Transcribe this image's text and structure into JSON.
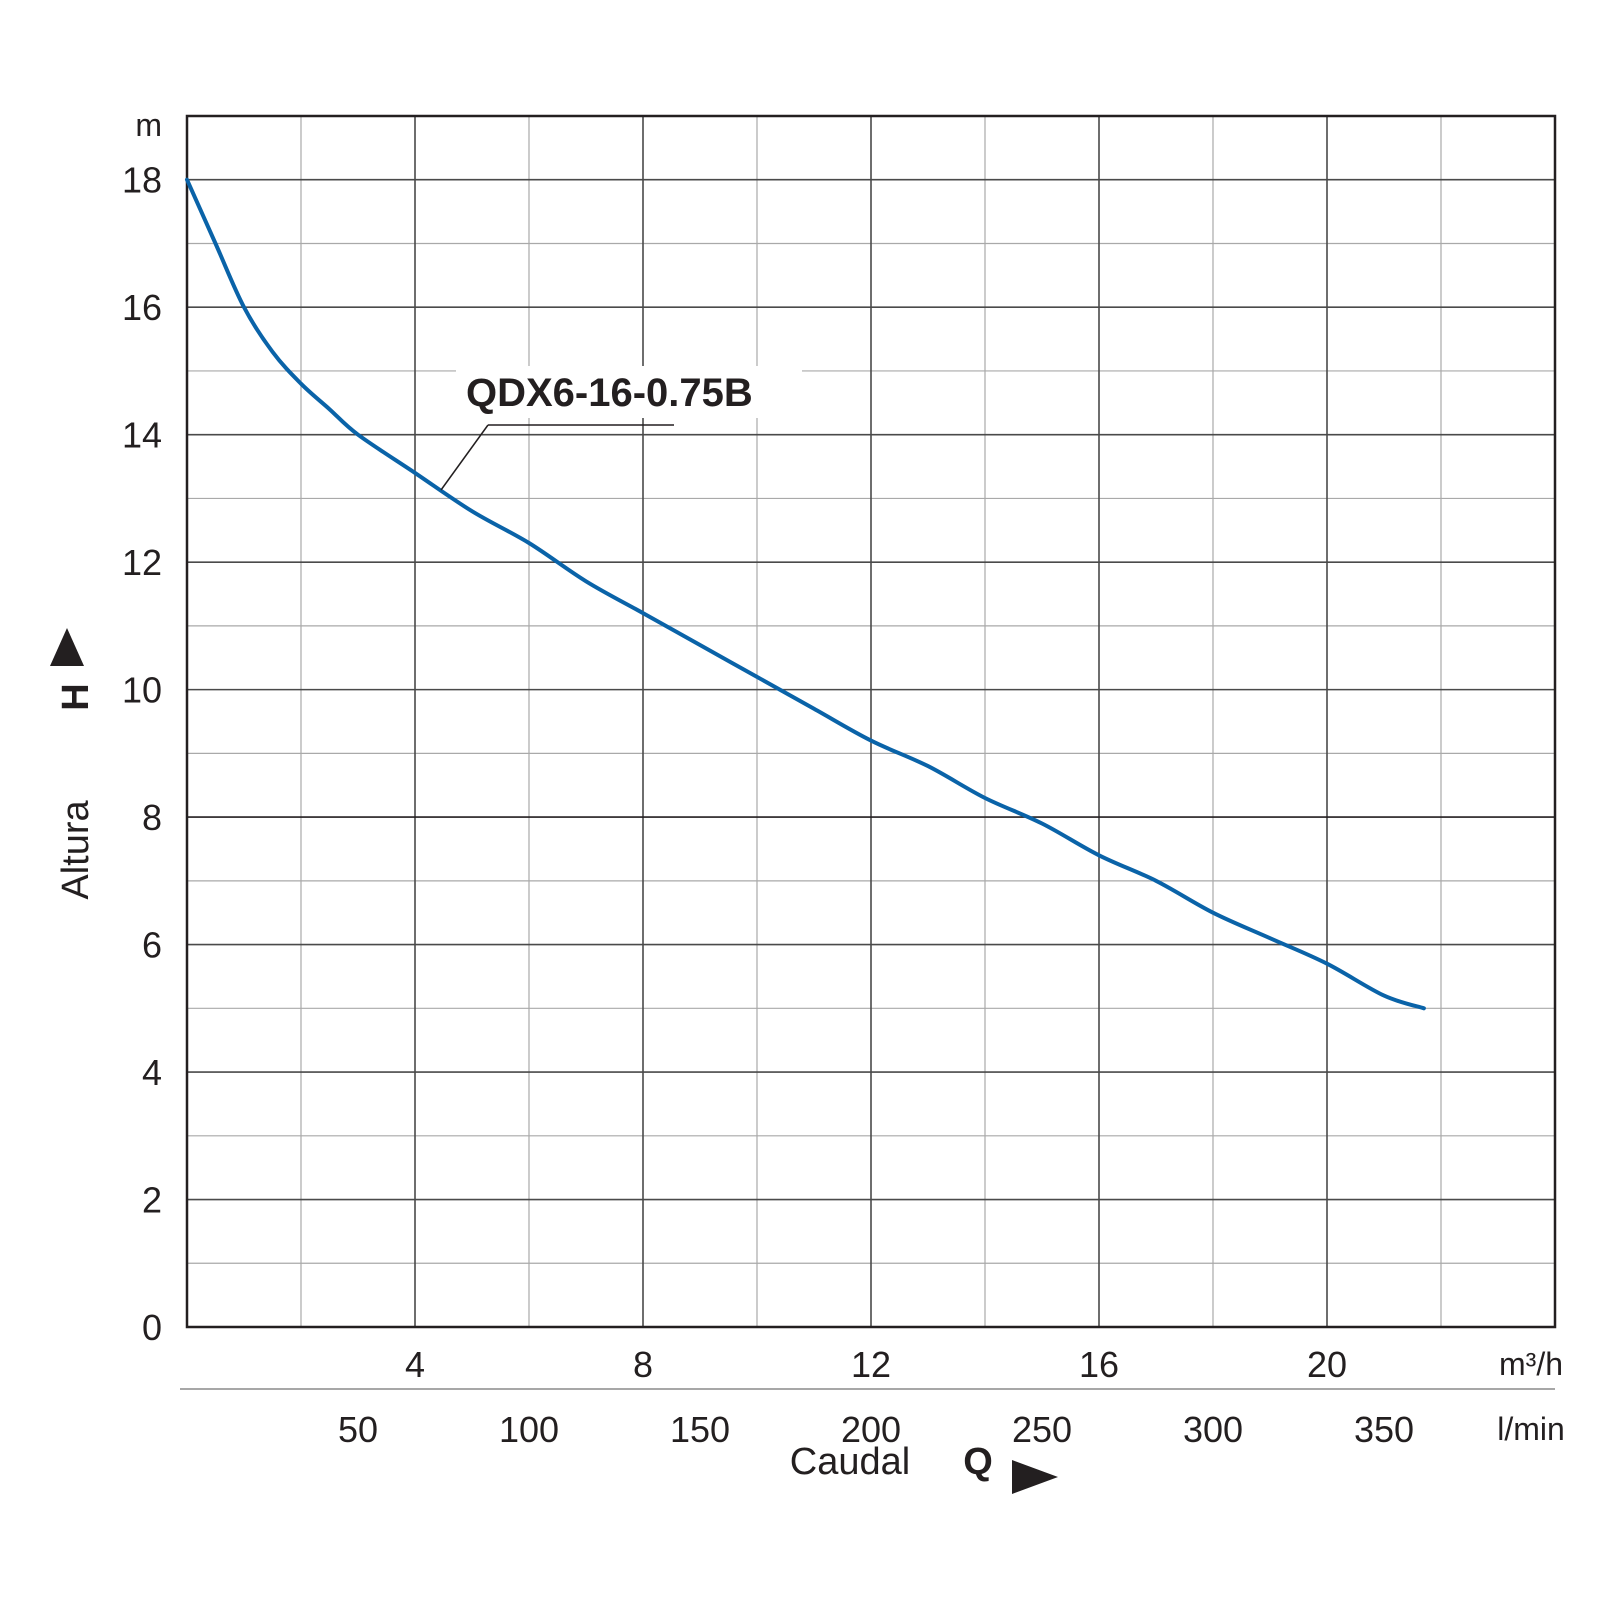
{
  "chart_data": {
    "type": "line",
    "x_primary": {
      "unit_label": "m³/h",
      "ticks": [
        "4",
        "8",
        "12",
        "16",
        "20"
      ],
      "tick_values": [
        4,
        8,
        12,
        16,
        20
      ],
      "range": [
        0,
        24
      ]
    },
    "x_secondary": {
      "unit_label": "l/min",
      "ticks": [
        "50",
        "100",
        "150",
        "200",
        "250",
        "300",
        "350"
      ],
      "tick_values": [
        50,
        100,
        150,
        200,
        250,
        300,
        350
      ]
    },
    "y": {
      "unit_label": "m",
      "ticks": [
        "0",
        "2",
        "4",
        "6",
        "8",
        "10",
        "12",
        "14",
        "16",
        "18"
      ],
      "tick_values": [
        0,
        2,
        4,
        6,
        8,
        10,
        12,
        14,
        16,
        18
      ],
      "range": [
        0,
        19
      ]
    },
    "xlabel": {
      "text": "Caudal",
      "symbol": "Q"
    },
    "ylabel": {
      "text": "Altura",
      "symbol": "H"
    },
    "grid": true,
    "series": [
      {
        "name": "QDX6-16-0.75B",
        "color": "#0a63a8",
        "x": [
          0,
          0.5,
          1.0,
          1.5,
          2.0,
          2.5,
          3.0,
          4.0,
          5.0,
          6.0,
          7.0,
          8.0,
          9.0,
          10.0,
          11.0,
          12.0,
          13.0,
          14.0,
          15.0,
          16.0,
          17.0,
          18.0,
          19.0,
          20.0,
          21.0,
          21.7
        ],
        "y": [
          18.0,
          17.0,
          16.0,
          15.3,
          14.8,
          14.4,
          14.0,
          13.4,
          12.8,
          12.3,
          11.7,
          11.2,
          10.7,
          10.2,
          9.7,
          9.2,
          8.8,
          8.3,
          7.9,
          7.4,
          7.0,
          6.5,
          6.1,
          5.7,
          5.2,
          5.0
        ]
      }
    ]
  }
}
